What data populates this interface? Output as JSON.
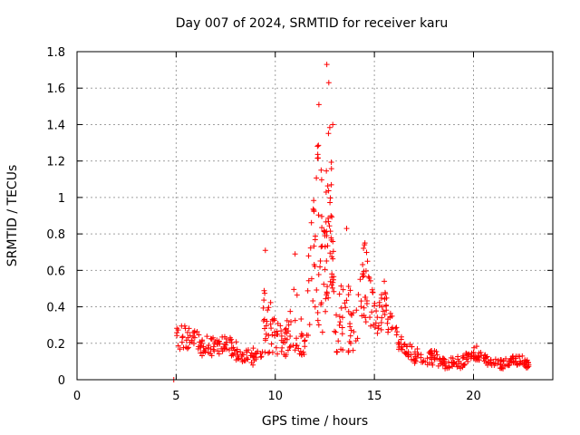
{
  "chart_data": {
    "type": "scatter",
    "title": "Day 007 of 2024, SRMTID for receiver karu",
    "xlabel": "GPS time / hours",
    "ylabel": "SRMTID / TECUs",
    "xlim": [
      0,
      24
    ],
    "ylim": [
      0,
      1.8
    ],
    "xticks": [
      "0",
      "5",
      "10",
      "15",
      "20"
    ],
    "yticks": [
      "0",
      "0.2",
      "0.4",
      "0.6",
      "0.8",
      "1",
      "1.2",
      "1.4",
      "1.6",
      "1.8"
    ],
    "grid": true,
    "marker": "plus",
    "color": "#ff0000",
    "series": [
      {
        "name": "SRMTID",
        "profile": [
          [
            4.85,
            0.0,
            0.0,
            0
          ],
          [
            5.0,
            0.22,
            0.06,
            14
          ],
          [
            5.5,
            0.24,
            0.07,
            16
          ],
          [
            6.0,
            0.22,
            0.07,
            16
          ],
          [
            6.5,
            0.18,
            0.06,
            16
          ],
          [
            7.0,
            0.18,
            0.05,
            16
          ],
          [
            7.5,
            0.2,
            0.05,
            16
          ],
          [
            8.0,
            0.16,
            0.05,
            16
          ],
          [
            8.5,
            0.14,
            0.05,
            16
          ],
          [
            9.0,
            0.12,
            0.05,
            16
          ],
          [
            9.5,
            0.35,
            0.2,
            22
          ],
          [
            10.0,
            0.22,
            0.1,
            18
          ],
          [
            10.5,
            0.2,
            0.08,
            16
          ],
          [
            11.0,
            0.35,
            0.2,
            20
          ],
          [
            11.5,
            0.18,
            0.07,
            16
          ],
          [
            12.0,
            0.9,
            0.55,
            30
          ],
          [
            12.5,
            0.6,
            0.4,
            24
          ],
          [
            12.75,
            1.1,
            0.55,
            26
          ],
          [
            13.0,
            0.25,
            0.12,
            18
          ],
          [
            13.5,
            0.45,
            0.3,
            20
          ],
          [
            14.0,
            0.25,
            0.1,
            16
          ],
          [
            14.5,
            0.55,
            0.25,
            20
          ],
          [
            15.0,
            0.35,
            0.1,
            18
          ],
          [
            15.5,
            0.38,
            0.12,
            18
          ],
          [
            16.0,
            0.25,
            0.08,
            16
          ],
          [
            16.5,
            0.15,
            0.05,
            16
          ],
          [
            17.0,
            0.14,
            0.05,
            16
          ],
          [
            17.5,
            0.12,
            0.04,
            16
          ],
          [
            18.0,
            0.12,
            0.04,
            16
          ],
          [
            18.5,
            0.1,
            0.04,
            16
          ],
          [
            19.0,
            0.09,
            0.03,
            16
          ],
          [
            19.5,
            0.1,
            0.04,
            16
          ],
          [
            20.0,
            0.16,
            0.05,
            16
          ],
          [
            20.5,
            0.1,
            0.04,
            16
          ],
          [
            21.0,
            0.09,
            0.03,
            16
          ],
          [
            21.5,
            0.09,
            0.03,
            16
          ],
          [
            22.0,
            0.1,
            0.03,
            16
          ],
          [
            22.5,
            0.1,
            0.03,
            16
          ],
          [
            22.8,
            0.08,
            0.02,
            8
          ]
        ],
        "peaks": [
          [
            12.2,
            1.51
          ],
          [
            12.6,
            1.73
          ],
          [
            12.7,
            1.63
          ],
          [
            12.9,
            1.4
          ],
          [
            9.5,
            0.71
          ],
          [
            11.0,
            0.69
          ],
          [
            13.6,
            0.83
          ],
          [
            14.5,
            0.74
          ],
          [
            15.5,
            0.54
          ],
          [
            4.88,
            0.0
          ]
        ]
      }
    ]
  }
}
